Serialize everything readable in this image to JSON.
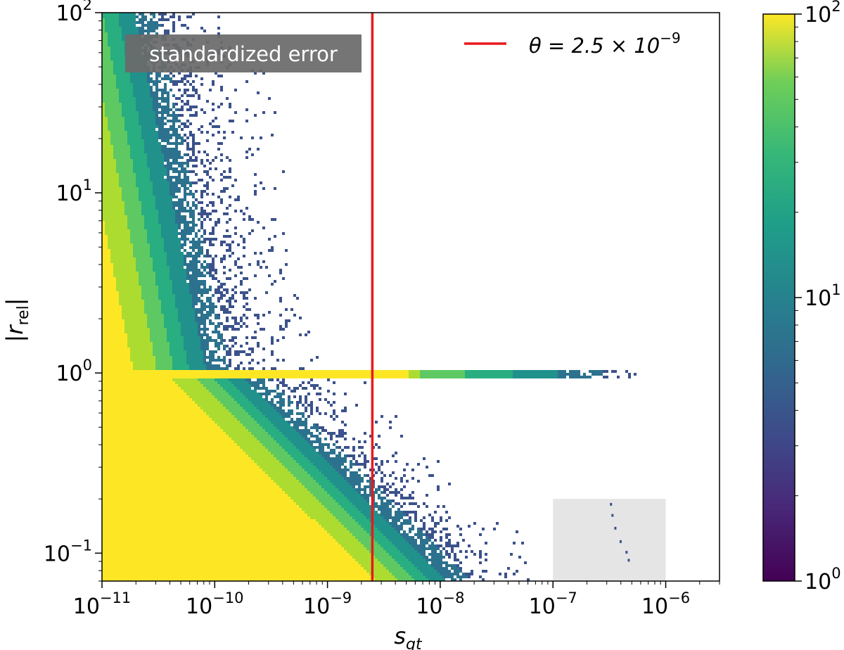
{
  "chart_data": {
    "type": "heatmap",
    "xlabel_main": "s",
    "xlabel_sub": "gt",
    "ylabel_main": "r",
    "ylabel_sub": "rel",
    "xscale": "log",
    "yscale": "log",
    "xlim": [
      1e-11,
      3e-06
    ],
    "ylim": [
      0.07,
      100
    ],
    "x_ticks": [
      {
        "value": 1e-11,
        "base": "10",
        "exp": "−11"
      },
      {
        "value": 1e-10,
        "base": "10",
        "exp": "−10"
      },
      {
        "value": 1e-09,
        "base": "10",
        "exp": "−9"
      },
      {
        "value": 1e-08,
        "base": "10",
        "exp": "−8"
      },
      {
        "value": 1e-07,
        "base": "10",
        "exp": "−7"
      },
      {
        "value": 1e-06,
        "base": "10",
        "exp": "−6"
      }
    ],
    "y_ticks": [
      {
        "value": 0.1,
        "base": "10",
        "exp": "−1"
      },
      {
        "value": 1,
        "base": "10",
        "exp": "0"
      },
      {
        "value": 10,
        "base": "10",
        "exp": "1"
      },
      {
        "value": 100,
        "base": "10",
        "exp": "2"
      }
    ],
    "annotation": "standardized error",
    "threshold": {
      "x": 2.5e-09,
      "legend_label": "θ = 2.5 × 10",
      "legend_exp": "−9",
      "color": "#e8191b"
    },
    "shaded_region": {
      "x": [
        1e-07,
        1e-06
      ],
      "y": [
        0.07,
        0.2
      ],
      "color": "#e5e5e5"
    },
    "colorbar": {
      "scale": "log",
      "lim": [
        1,
        100
      ],
      "colormap": "viridis",
      "ticks": [
        {
          "value": 1,
          "base": "10",
          "exp": "0"
        },
        {
          "value": 10,
          "base": "10",
          "exp": "1"
        },
        {
          "value": 100,
          "base": "10",
          "exp": "2"
        }
      ]
    },
    "legend_position": "upper right",
    "grid": false
  }
}
